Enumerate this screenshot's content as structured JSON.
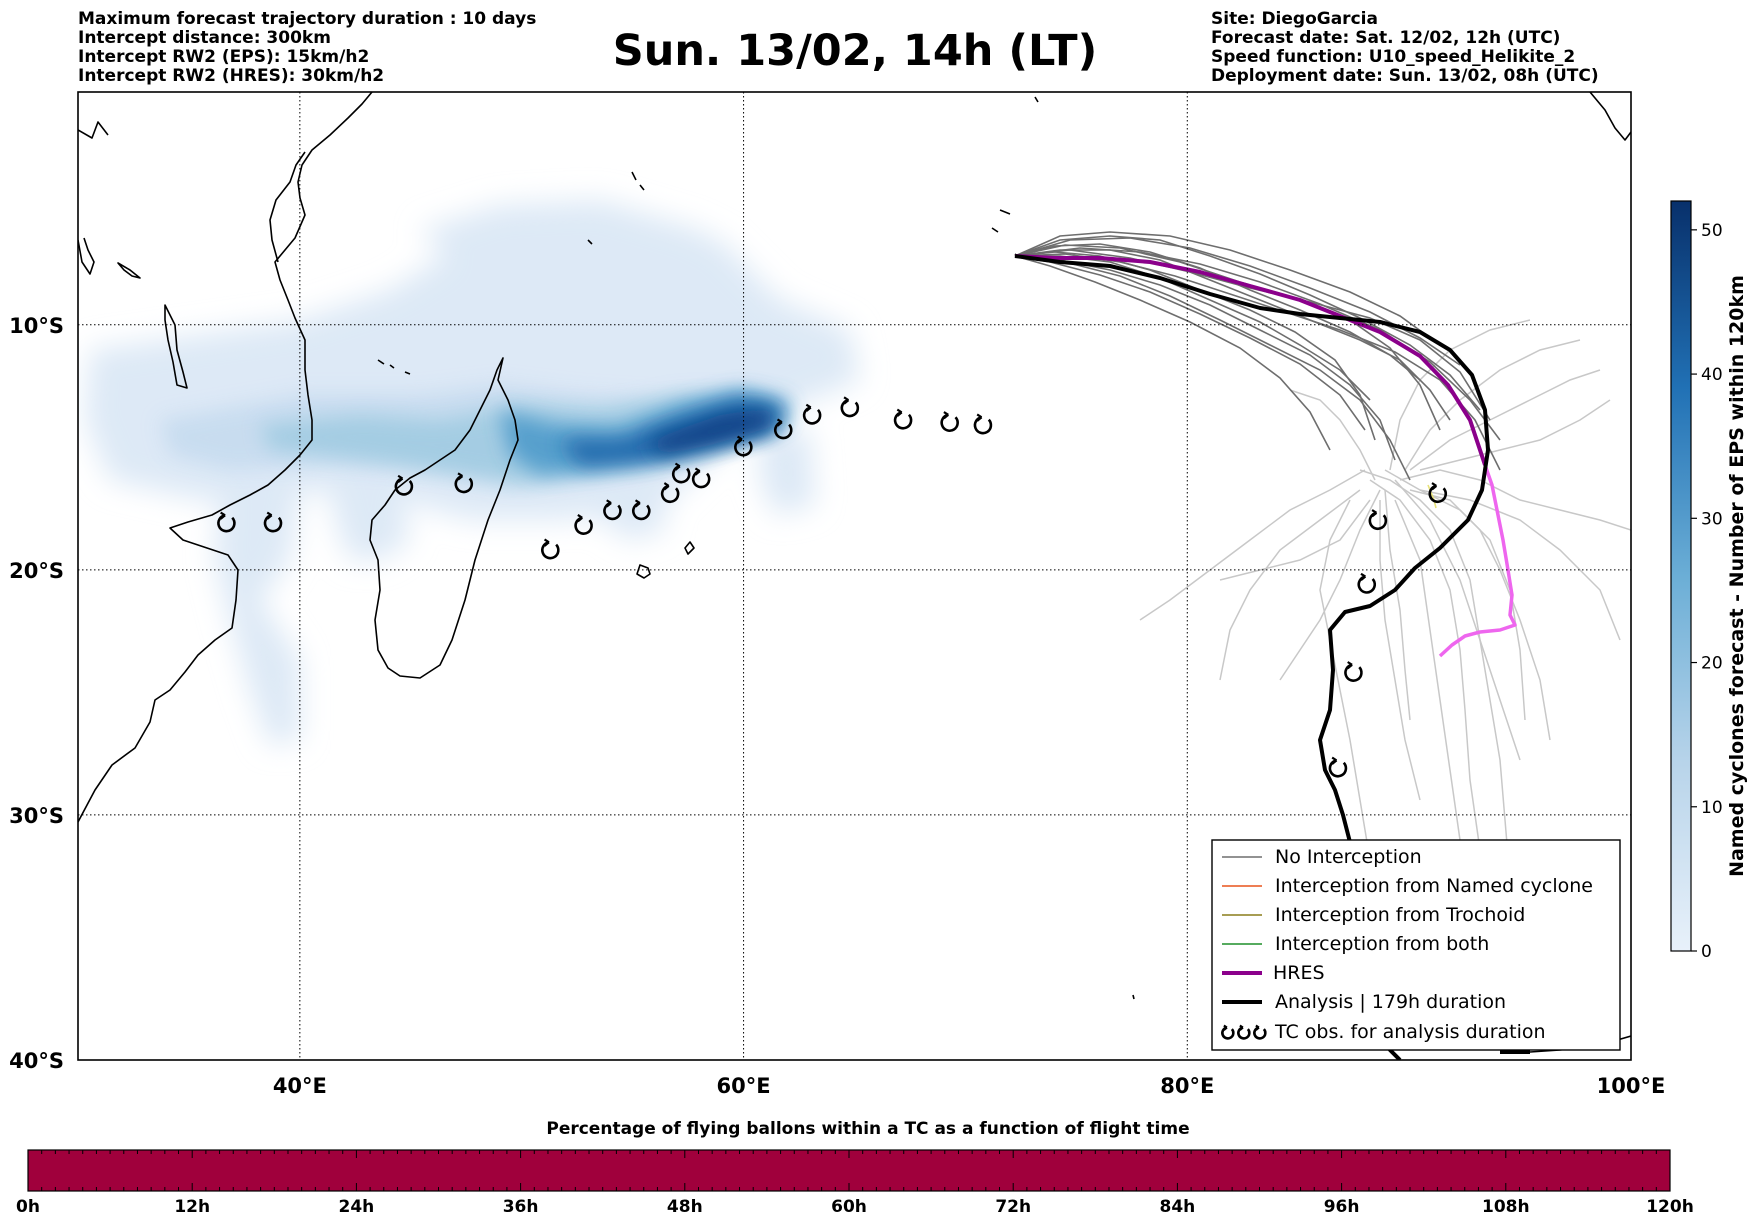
{
  "header": {
    "left_lines": [
      "Maximum forecast trajectory duration : 10 days",
      "Intercept distance: 300km",
      "Intercept RW2 (EPS):  15km/h2",
      "Intercept RW2 (HRES): 30km/h2"
    ],
    "title": "Sun. 13/02, 14h (LT)",
    "right_lines": [
      "Site: DiegoGarcia",
      "Forecast date: Sat. 12/02, 12h (UTC)",
      "Speed function: U10_speed_Helikite_2",
      "Deployment date: Sun. 13/02, 08h (UTC)"
    ]
  },
  "map": {
    "lon_range": [
      30,
      100
    ],
    "lat_range": [
      -40,
      -0.5
    ],
    "lon_ticks": [
      {
        "lon": 40,
        "label": "40°E"
      },
      {
        "lon": 60,
        "label": "60°E"
      },
      {
        "lon": 80,
        "label": "80°E"
      },
      {
        "lon": 100,
        "label": "100°E"
      }
    ],
    "lat_ticks": [
      {
        "lat": -10,
        "label": "10°S"
      },
      {
        "lat": -20,
        "label": "20°S"
      },
      {
        "lat": -30,
        "label": "30°S"
      },
      {
        "lat": -40,
        "label": "40°S"
      }
    ],
    "gridlines": true,
    "colors": {
      "no_interception": "#6e6e6e",
      "ensemble_light": "#c8c8c8",
      "interception_named_cyclone": "#e8541c",
      "interception_trochoid": "#8a7d1a",
      "interception_both": "#1f8f2a",
      "hres": "#8b008b",
      "hres_extension": "#ee66ee",
      "analysis": "#000000",
      "density_low": "#dce9f6",
      "density_high": "#08306b"
    }
  },
  "legend": {
    "position": "bottom-right",
    "items": [
      {
        "label": "No Interception",
        "type": "thin",
        "color": "#6e6e6e"
      },
      {
        "label": "Interception from Named cyclone",
        "type": "thin",
        "color": "#e8541c"
      },
      {
        "label": "Interception from Trochoid",
        "type": "thin",
        "color": "#8a7d1a"
      },
      {
        "label": "Interception from both",
        "type": "thin",
        "color": "#1f8f2a"
      },
      {
        "label": "HRES",
        "type": "thick",
        "color": "#8b008b"
      },
      {
        "label": "Analysis | 179h duration",
        "type": "thick",
        "color": "#000000"
      },
      {
        "label": "TC obs. for analysis duration",
        "type": "symbol",
        "color": "#000000"
      }
    ]
  },
  "colorbar": {
    "label": "Named cyclones forecast - Number of EPS within 120km",
    "min": 0,
    "max": 52,
    "ticks": [
      0,
      10,
      20,
      30,
      40,
      50
    ]
  },
  "time_bar": {
    "title": "Percentage of flying ballons within a TC as a function of flight time",
    "ticks": [
      "0h",
      "12h",
      "24h",
      "36h",
      "48h",
      "60h",
      "72h",
      "84h",
      "96h",
      "108h",
      "120h"
    ],
    "color": "#a0003c"
  },
  "cyclone_observations": [
    [
      36.7,
      -18.1
    ],
    [
      38.8,
      -18.1
    ],
    [
      44.7,
      -16.6
    ],
    [
      47.4,
      -16.5
    ],
    [
      51.3,
      -19.2
    ],
    [
      52.8,
      -18.2
    ],
    [
      54.1,
      -17.6
    ],
    [
      55.4,
      -17.6
    ],
    [
      56.7,
      -16.9
    ],
    [
      57.2,
      -16.1
    ],
    [
      58.1,
      -16.3
    ],
    [
      60.0,
      -15.0
    ],
    [
      61.8,
      -14.3
    ],
    [
      63.1,
      -13.7
    ],
    [
      64.8,
      -13.4
    ],
    [
      67.2,
      -13.9
    ],
    [
      69.3,
      -14.0
    ],
    [
      70.8,
      -14.1
    ],
    [
      88.6,
      -18.0
    ],
    [
      88.1,
      -20.6
    ],
    [
      87.5,
      -24.2
    ],
    [
      86.8,
      -28.1
    ],
    [
      91.3,
      -16.9
    ]
  ]
}
